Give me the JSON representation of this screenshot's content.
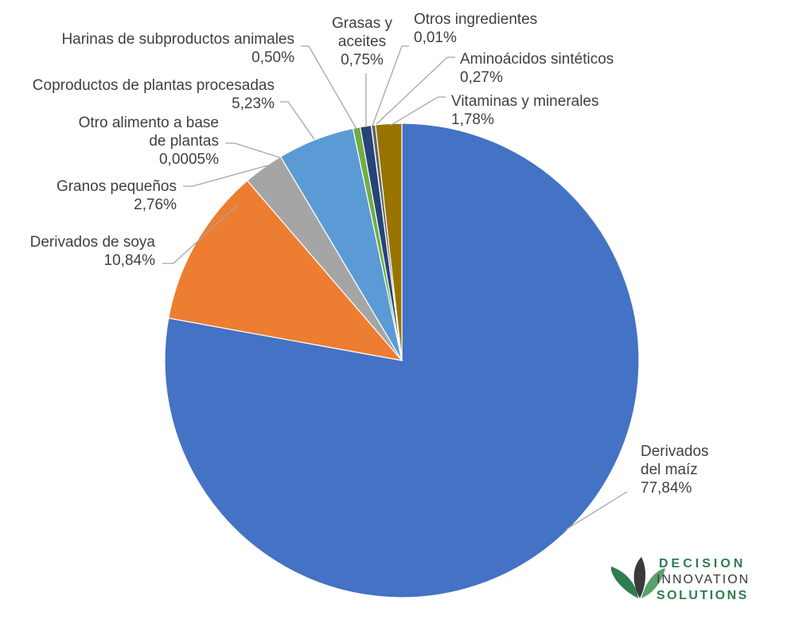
{
  "chart_data": {
    "type": "pie",
    "title": "",
    "slices": [
      {
        "name": "Derivados del maíz",
        "label_lines": [
          "Derivados",
          "del maíz"
        ],
        "value": 77.84,
        "value_label": "77,84%",
        "color": "#4472c4"
      },
      {
        "name": "Derivados de soya",
        "label_lines": [
          "Derivados de soya"
        ],
        "value": 10.84,
        "value_label": "10,84%",
        "color": "#ed7d31"
      },
      {
        "name": "Granos pequeños",
        "label_lines": [
          "Granos pequeños"
        ],
        "value": 2.76,
        "value_label": "2,76%",
        "color": "#a5a5a5"
      },
      {
        "name": "Otro alimento a base de plantas",
        "label_lines": [
          "Otro alimento a base",
          "de plantas"
        ],
        "value": 0.0005,
        "value_label": "0,0005%",
        "color": "#ffc000"
      },
      {
        "name": "Coproductos de plantas procesadas",
        "label_lines": [
          "Coproductos de plantas procesadas"
        ],
        "value": 5.23,
        "value_label": "5,23%",
        "color": "#5b9bd5"
      },
      {
        "name": "Harinas de subproductos animales",
        "label_lines": [
          "Harinas de subproductos animales"
        ],
        "value": 0.5,
        "value_label": "0,50%",
        "color": "#70ad47"
      },
      {
        "name": "Grasas y aceites",
        "label_lines": [
          "Grasas y",
          "aceites"
        ],
        "value": 0.75,
        "value_label": "0,75%",
        "color": "#264478"
      },
      {
        "name": "Otros ingredientes",
        "label_lines": [
          "Otros ingredientes"
        ],
        "value": 0.01,
        "value_label": "0,01%",
        "color": "#9e480e"
      },
      {
        "name": "Aminoácidos sintéticos",
        "label_lines": [
          "Aminoácidos sintéticos"
        ],
        "value": 0.27,
        "value_label": "0,27%",
        "color": "#636363"
      },
      {
        "name": "Vitaminas y minerales",
        "label_lines": [
          "Vitaminas y minerales"
        ],
        "value": 1.78,
        "value_label": "1,78%",
        "color": "#997300"
      }
    ],
    "legend": "none"
  },
  "logo": {
    "line1": "DECISION",
    "line2": "INNOVATION",
    "line3": "SOLUTIONS",
    "color_primary": "#2e7d4f",
    "color_dark": "#3a3a3a"
  }
}
